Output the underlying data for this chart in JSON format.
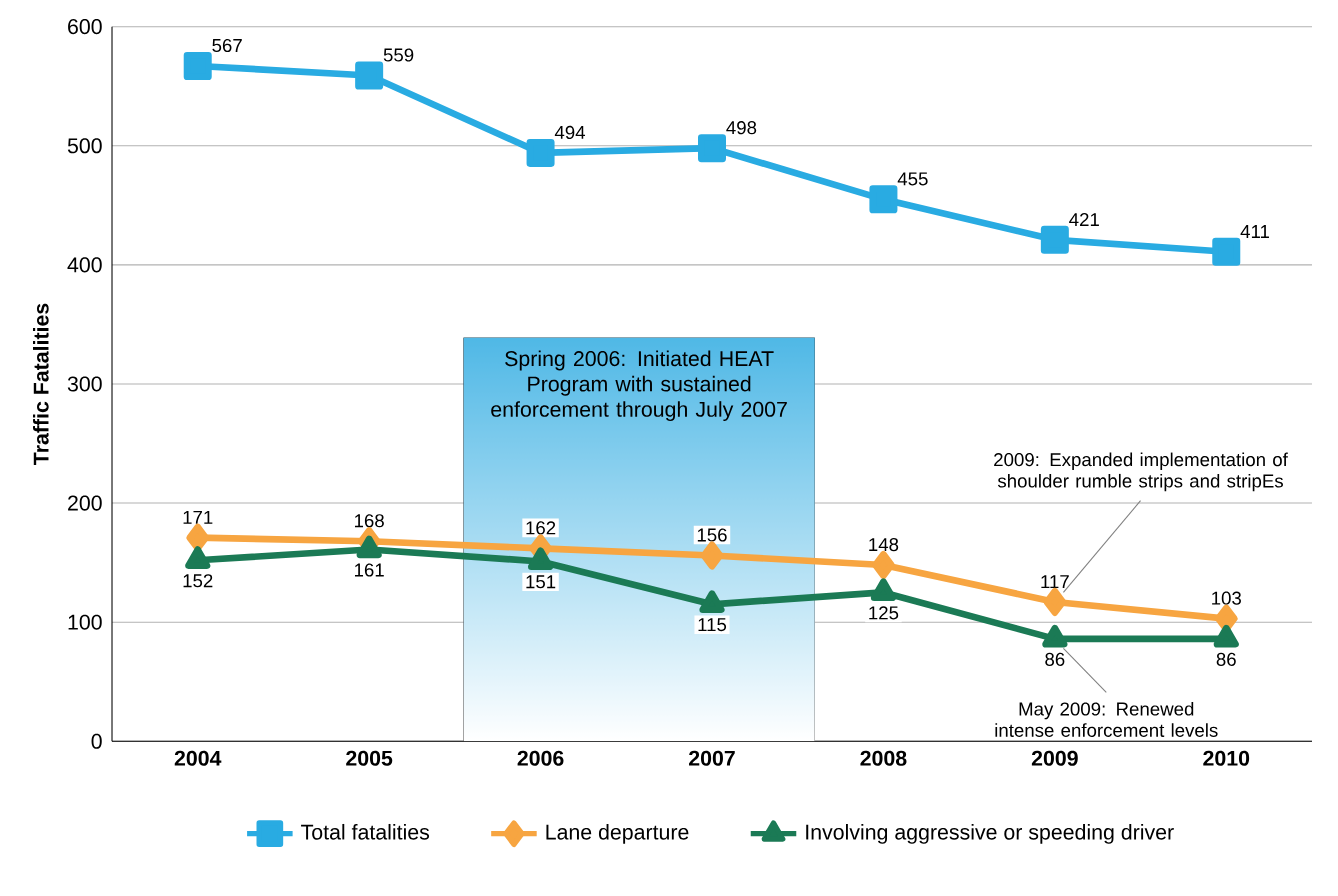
{
  "chart_data": {
    "type": "line",
    "ylabel": "Traffic Fatalities",
    "x": [
      2004,
      2005,
      2006,
      2007,
      2008,
      2009,
      2010
    ],
    "xlim": [
      2003.5,
      2010.5
    ],
    "xticks": [
      2004,
      2005,
      2006,
      2007,
      2008,
      2009,
      2010
    ],
    "ylim": [
      0,
      600
    ],
    "yticks": [
      0,
      100,
      200,
      300,
      400,
      500,
      600
    ],
    "series": [
      {
        "name": "Total fatalities",
        "color": "#29abe2",
        "marker": "square",
        "values": [
          567,
          559,
          494,
          498,
          455,
          421,
          411
        ]
      },
      {
        "name": "Lane departure",
        "color": "#f7a541",
        "marker": "diamond",
        "values": [
          171,
          168,
          162,
          156,
          148,
          117,
          103
        ]
      },
      {
        "name": "Involving aggressive or speeding driver",
        "color": "#1b7a55",
        "marker": "triangle",
        "values": [
          152,
          161,
          151,
          115,
          125,
          86,
          86
        ]
      }
    ],
    "bands": [
      {
        "axis": "x",
        "from": 2005.55,
        "to": 2007.6,
        "label": "Spring 2006: Initiated HEAT Program with sustained enforcement through July 2007",
        "color": "#4fb8e6"
      }
    ],
    "annotations": [
      {
        "text": "2009: Expanded implementation of shoulder rumble strips and stripEs",
        "x": 2009,
        "y": 117
      },
      {
        "text": "May 2009: Renewed intense enforcement levels",
        "x": 2009,
        "y": 86
      }
    ],
    "data_labels": true,
    "grid": "y",
    "legend": "bottom"
  }
}
